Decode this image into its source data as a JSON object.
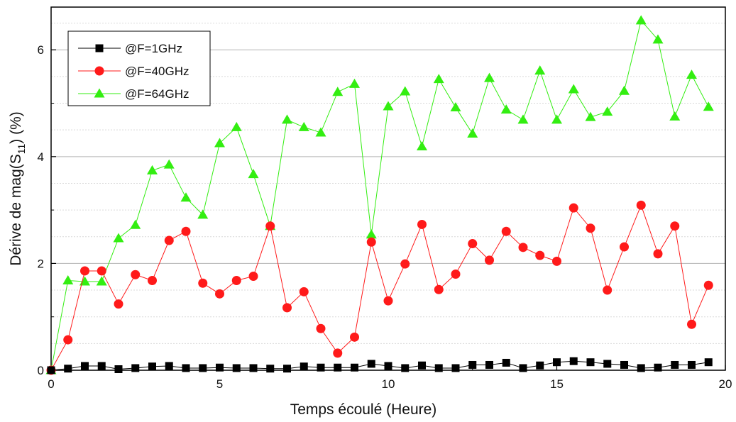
{
  "chart_data": {
    "type": "line",
    "xlabel": "Temps écoulé (Heure)",
    "ylabel": {
      "prefix": "Dérive de mag(S",
      "subscript": "11",
      "suffix": ") (%)"
    },
    "xlim": [
      0,
      20
    ],
    "ylim": [
      0,
      6.8
    ],
    "xticks": [
      0,
      5,
      10,
      15,
      20
    ],
    "yticks": [
      0,
      2,
      4,
      6
    ],
    "grid": {
      "major_y": true,
      "minor_y": true
    },
    "legend_position": "top-left",
    "x": [
      0,
      0.5,
      1,
      1.5,
      2,
      2.5,
      3,
      3.5,
      4,
      4.5,
      5,
      5.5,
      6,
      6.5,
      7,
      7.5,
      8,
      8.5,
      9,
      9.5,
      10,
      10.5,
      11,
      11.5,
      12,
      12.5,
      13,
      13.5,
      14,
      14.5,
      15,
      15.5,
      16,
      16.5,
      17,
      17.5,
      18,
      18.5,
      19,
      19.5
    ],
    "series": [
      {
        "name": "@F=1GHz",
        "color": "#000000",
        "marker": "square",
        "values": [
          0.0,
          0.03,
          0.08,
          0.08,
          0.02,
          0.04,
          0.07,
          0.08,
          0.04,
          0.04,
          0.05,
          0.04,
          0.04,
          0.03,
          0.03,
          0.07,
          0.05,
          0.05,
          0.05,
          0.12,
          0.08,
          0.04,
          0.09,
          0.04,
          0.04,
          0.1,
          0.1,
          0.14,
          0.04,
          0.09,
          0.15,
          0.17,
          0.15,
          0.12,
          0.1,
          0.04,
          0.05,
          0.1,
          0.1,
          0.15
        ]
      },
      {
        "name": "@F=40GHz",
        "color": "#ff1a1a",
        "marker": "circle",
        "values": [
          0.0,
          0.57,
          1.86,
          1.86,
          1.24,
          1.79,
          1.68,
          2.43,
          2.6,
          1.63,
          1.43,
          1.68,
          1.76,
          2.7,
          1.17,
          1.47,
          0.78,
          0.32,
          0.62,
          2.4,
          1.3,
          1.99,
          2.73,
          1.51,
          1.8,
          2.37,
          2.06,
          2.6,
          2.3,
          2.15,
          2.04,
          3.04,
          2.66,
          1.5,
          2.31,
          3.09,
          2.18,
          2.7,
          0.86,
          1.59
        ]
      },
      {
        "name": "@F=64GHz",
        "color": "#33ee11",
        "marker": "triangle",
        "values": [
          0.0,
          1.68,
          1.66,
          1.66,
          2.47,
          2.72,
          3.74,
          3.85,
          3.23,
          2.91,
          4.25,
          4.55,
          3.67,
          2.7,
          4.69,
          4.55,
          4.45,
          5.21,
          5.36,
          2.54,
          4.94,
          5.22,
          4.19,
          5.45,
          4.92,
          4.43,
          5.47,
          4.88,
          4.69,
          5.61,
          4.69,
          5.26,
          4.74,
          4.84,
          5.23,
          6.55,
          6.19,
          4.75,
          5.53,
          4.93
        ]
      }
    ]
  }
}
